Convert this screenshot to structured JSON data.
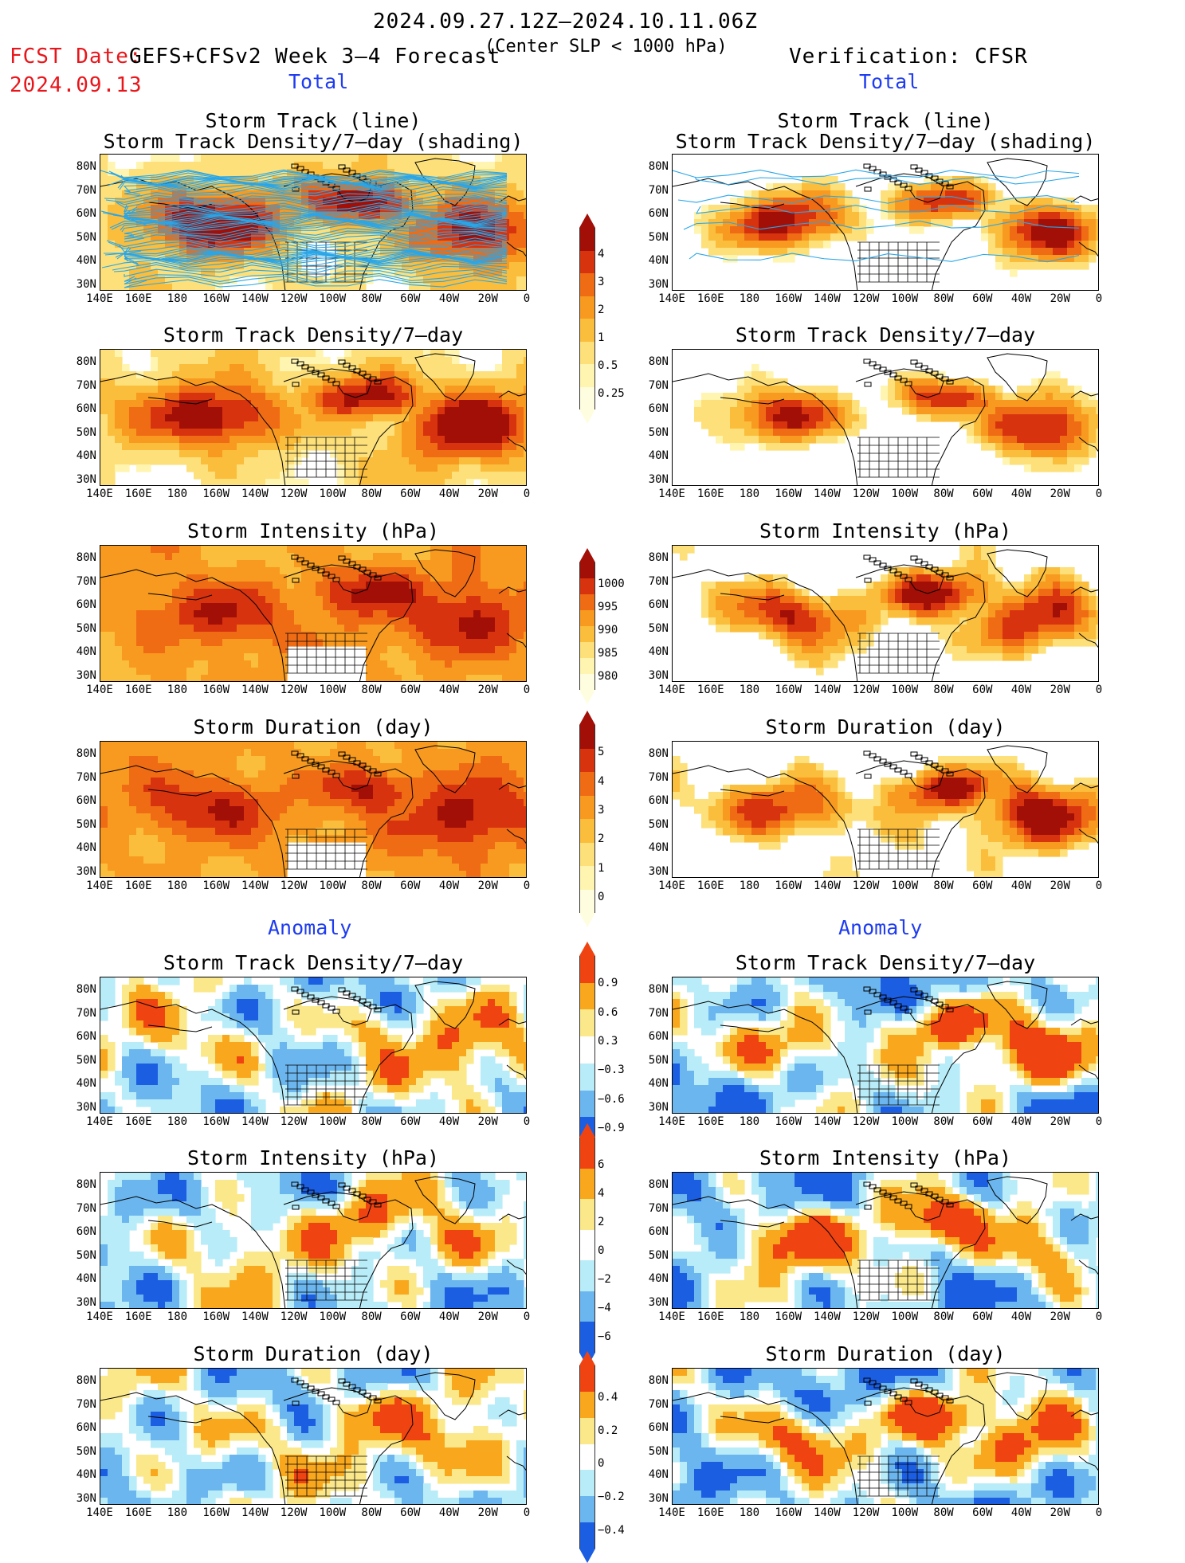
{
  "header": {
    "date_range": "2024.09.27.12Z–2024.10.11.06Z",
    "fcst_label": "FCST Date:",
    "fcst_date": "2024.09.13",
    "model": "GEFS+CFSv2 Week 3–4 Forecast",
    "criterion": "(Center SLP < 1000 hPa)",
    "verification": "Verification: CFSR"
  },
  "sections": {
    "total_left": "Total",
    "total_right": "Total",
    "anomaly_left": "Anomaly",
    "anomaly_right": "Anomaly"
  },
  "titles": {
    "track_line": "Storm Track (line)",
    "track_shading": "Storm Track Density/7–day (shading)",
    "density": "Storm Track Density/7–day",
    "intensity": "Storm Intensity (hPa)",
    "duration": "Storm Duration (day)"
  },
  "axes": {
    "lat_labels": [
      "80N",
      "70N",
      "60N",
      "50N",
      "40N",
      "30N"
    ],
    "lon_labels": [
      "140E",
      "160E",
      "180",
      "160W",
      "140W",
      "120W",
      "100W",
      "80W",
      "60W",
      "40W",
      "20W",
      "0"
    ]
  },
  "colorbars": {
    "density_total": [
      "4",
      "3",
      "2",
      "1",
      "0.5",
      "0.25"
    ],
    "intensity_total": [
      "1000",
      "995",
      "990",
      "985",
      "980"
    ],
    "duration_total": [
      "5",
      "4",
      "3",
      "2",
      "1",
      "0"
    ],
    "density_anom": [
      "0.9",
      "0.6",
      "0.3",
      "−0.3",
      "−0.6",
      "−0.9"
    ],
    "intensity_anom": [
      "6",
      "4",
      "2",
      "0",
      "−2",
      "−4",
      "−6"
    ],
    "duration_anom": [
      "0.4",
      "0.2",
      "0",
      "−0.2",
      "−0.4"
    ]
  },
  "colors": {
    "warm": [
      "#fff5b0",
      "#fde07a",
      "#fbbd3c",
      "#f79a1f",
      "#ef6c15",
      "#d8330f",
      "#a10f07"
    ],
    "anom_warm": [
      "#fbe88a",
      "#f9a81d",
      "#ef4412"
    ],
    "anom_cool": [
      "#b8ecf8",
      "#6cb6ef",
      "#1c5ee2"
    ],
    "track_line": "#29a6e8"
  }
}
